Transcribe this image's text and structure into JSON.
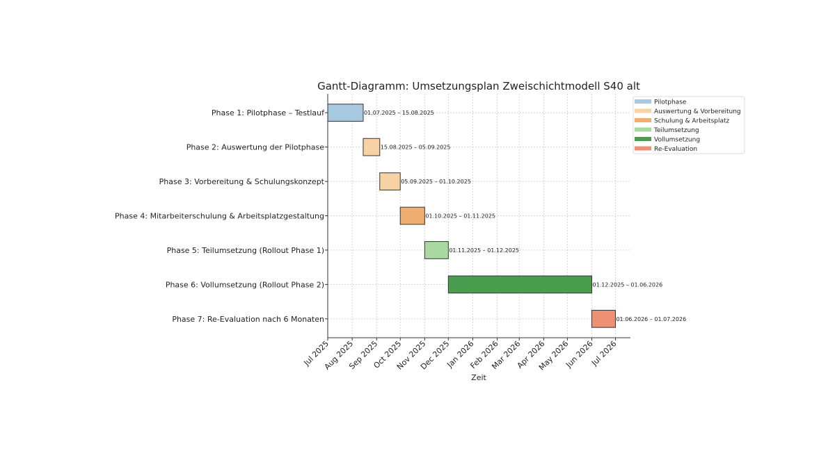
{
  "chart_data": {
    "type": "gantt",
    "title": "Gantt-Diagramm: Umsetzungsplan Zweischichtmodell S40 alt",
    "xlabel": "Zeit",
    "ylabel": "",
    "xlim": [
      "2025-07-01",
      "2026-07-20"
    ],
    "grid": true,
    "legend_position": "top-right",
    "x_ticks": [
      {
        "date": "2025-07-01",
        "label": "Jul 2025"
      },
      {
        "date": "2025-08-01",
        "label": "Aug 2025"
      },
      {
        "date": "2025-09-01",
        "label": "Sep 2025"
      },
      {
        "date": "2025-10-01",
        "label": "Oct 2025"
      },
      {
        "date": "2025-11-01",
        "label": "Nov 2025"
      },
      {
        "date": "2025-12-01",
        "label": "Dec 2025"
      },
      {
        "date": "2026-01-01",
        "label": "Jan 2026"
      },
      {
        "date": "2026-02-01",
        "label": "Feb 2026"
      },
      {
        "date": "2026-03-01",
        "label": "Mar 2026"
      },
      {
        "date": "2026-04-01",
        "label": "Apr 2026"
      },
      {
        "date": "2026-05-01",
        "label": "May 2026"
      },
      {
        "date": "2026-06-01",
        "label": "Jun 2026"
      },
      {
        "date": "2026-07-01",
        "label": "Jul 2026"
      }
    ],
    "legend": [
      {
        "label": "Pilotphase",
        "color": "#a6c8e0"
      },
      {
        "label": "Auswertung & Vorbereitung",
        "color": "#f6d2a4"
      },
      {
        "label": "Schulung & Arbeitsplatz",
        "color": "#f0ae70"
      },
      {
        "label": "Teilumsetzung",
        "color": "#a9d9a0"
      },
      {
        "label": "Vollumsetzung",
        "color": "#4a9d4f"
      },
      {
        "label": "Re-Evaluation",
        "color": "#ee9073"
      }
    ],
    "tasks": [
      {
        "name": "Phase 1: Pilotphase – Testlauf",
        "start": "2025-07-01",
        "end": "2025-08-15",
        "category": 0,
        "label": "01.07.2025 – 15.08.2025"
      },
      {
        "name": "Phase 2: Auswertung der Pilotphase",
        "start": "2025-08-15",
        "end": "2025-09-05",
        "category": 1,
        "label": "15.08.2025 – 05.09.2025"
      },
      {
        "name": "Phase 3: Vorbereitung & Schulungskonzept",
        "start": "2025-09-05",
        "end": "2025-10-01",
        "category": 1,
        "label": "05.09.2025 – 01.10.2025"
      },
      {
        "name": "Phase 4: Mitarbeiterschulung & Arbeitsplatzgestaltung",
        "start": "2025-10-01",
        "end": "2025-11-01",
        "category": 2,
        "label": "01.10.2025 – 01.11.2025"
      },
      {
        "name": "Phase 5: Teilumsetzung (Rollout Phase 1)",
        "start": "2025-11-01",
        "end": "2025-12-01",
        "category": 3,
        "label": "01.11.2025 – 01.12.2025"
      },
      {
        "name": "Phase 6: Vollumsetzung (Rollout Phase 2)",
        "start": "2025-12-01",
        "end": "2026-06-01",
        "category": 4,
        "label": "01.12.2025 – 01.06.2026"
      },
      {
        "name": "Phase 7: Re-Evaluation nach 6 Monaten",
        "start": "2026-06-01",
        "end": "2026-07-01",
        "category": 5,
        "label": "01.06.2026 – 01.07.2026"
      }
    ]
  }
}
